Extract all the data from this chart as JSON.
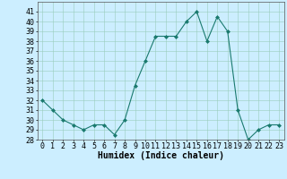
{
  "x": [
    0,
    1,
    2,
    3,
    4,
    5,
    6,
    7,
    8,
    9,
    10,
    11,
    12,
    13,
    14,
    15,
    16,
    17,
    18,
    19,
    20,
    21,
    22,
    23
  ],
  "y": [
    32,
    31,
    30,
    29.5,
    29,
    29.5,
    29.5,
    28.5,
    30,
    33.5,
    36,
    38.5,
    38.5,
    38.5,
    40,
    41,
    38,
    40.5,
    39,
    31,
    28,
    29,
    29.5,
    29.5
  ],
  "line_color": "#1a7a6e",
  "marker": "D",
  "marker_size": 2,
  "bg_color": "#cceeff",
  "grid_color": "#99ccbb",
  "xlabel": "Humidex (Indice chaleur)",
  "ylim": [
    28,
    42
  ],
  "yticks": [
    28,
    29,
    30,
    31,
    32,
    33,
    34,
    35,
    36,
    37,
    38,
    39,
    40,
    41
  ],
  "xticks": [
    0,
    1,
    2,
    3,
    4,
    5,
    6,
    7,
    8,
    9,
    10,
    11,
    12,
    13,
    14,
    15,
    16,
    17,
    18,
    19,
    20,
    21,
    22,
    23
  ],
  "xlabel_fontsize": 7,
  "tick_fontsize": 6
}
